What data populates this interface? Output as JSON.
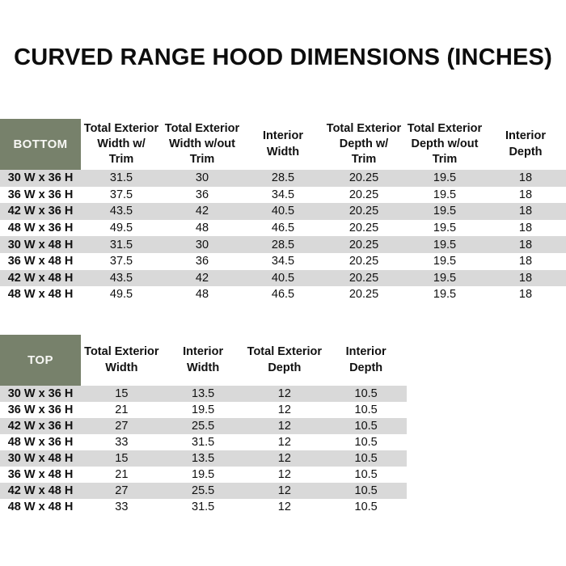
{
  "page": {
    "title": "CURVED RANGE HOOD DIMENSIONS (INCHES)"
  },
  "colors": {
    "header_green": "#77816B",
    "stripe_gray": "#D9D9D9",
    "corner_text": "#F7F7F4",
    "body_text": "#111111"
  },
  "bottom_table": {
    "corner_label": "BOTTOM",
    "columns": [
      "Total Exterior\nWidth w/\nTrim",
      "Total Exterior\nWidth w/out\nTrim",
      "Interior\nWidth",
      "Total Exterior\nDepth w/\nTrim",
      "Total Exterior\nDepth w/out\nTrim",
      "Interior\nDepth"
    ],
    "rows": [
      {
        "label": "30 W x 36 H",
        "values": [
          "31.5",
          "30",
          "28.5",
          "20.25",
          "19.5",
          "18"
        ]
      },
      {
        "label": "36 W x 36 H",
        "values": [
          "37.5",
          "36",
          "34.5",
          "20.25",
          "19.5",
          "18"
        ]
      },
      {
        "label": "42 W x 36 H",
        "values": [
          "43.5",
          "42",
          "40.5",
          "20.25",
          "19.5",
          "18"
        ]
      },
      {
        "label": "48 W x 36 H",
        "values": [
          "49.5",
          "48",
          "46.5",
          "20.25",
          "19.5",
          "18"
        ]
      },
      {
        "label": "30 W x 48 H",
        "values": [
          "31.5",
          "30",
          "28.5",
          "20.25",
          "19.5",
          "18"
        ]
      },
      {
        "label": "36 W x 48 H",
        "values": [
          "37.5",
          "36",
          "34.5",
          "20.25",
          "19.5",
          "18"
        ]
      },
      {
        "label": "42 W x 48 H",
        "values": [
          "43.5",
          "42",
          "40.5",
          "20.25",
          "19.5",
          "18"
        ]
      },
      {
        "label": "48 W x 48 H",
        "values": [
          "49.5",
          "48",
          "46.5",
          "20.25",
          "19.5",
          "18"
        ]
      }
    ]
  },
  "top_table": {
    "corner_label": "TOP",
    "columns": [
      "Total Exterior\nWidth",
      "Interior\nWidth",
      "Total Exterior\nDepth",
      "Interior\nDepth"
    ],
    "rows": [
      {
        "label": "30 W x 36 H",
        "values": [
          "15",
          "13.5",
          "12",
          "10.5"
        ]
      },
      {
        "label": "36 W x 36 H",
        "values": [
          "21",
          "19.5",
          "12",
          "10.5"
        ]
      },
      {
        "label": "42 W x 36 H",
        "values": [
          "27",
          "25.5",
          "12",
          "10.5"
        ]
      },
      {
        "label": "48 W x 36 H",
        "values": [
          "33",
          "31.5",
          "12",
          "10.5"
        ]
      },
      {
        "label": "30 W x 48 H",
        "values": [
          "15",
          "13.5",
          "12",
          "10.5"
        ]
      },
      {
        "label": "36 W x 48 H",
        "values": [
          "21",
          "19.5",
          "12",
          "10.5"
        ]
      },
      {
        "label": "42 W x 48 H",
        "values": [
          "27",
          "25.5",
          "12",
          "10.5"
        ]
      },
      {
        "label": "48 W x 48 H",
        "values": [
          "33",
          "31.5",
          "12",
          "10.5"
        ]
      }
    ]
  }
}
